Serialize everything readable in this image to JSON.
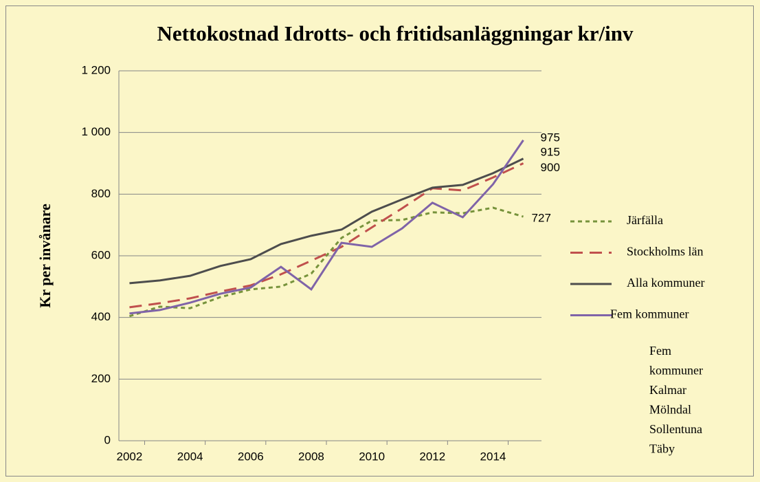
{
  "chart_data": {
    "type": "line",
    "title": "Nettokostnad Idrotts- och fritidsanläggningar kr/inv",
    "y_label": "Kr per invånare",
    "x": [
      2002,
      2003,
      2004,
      2005,
      2006,
      2007,
      2008,
      2009,
      2010,
      2011,
      2012,
      2013,
      2014,
      2015
    ],
    "xlim": [
      2001.65,
      2015.6
    ],
    "xticks": [
      2002,
      2004,
      2006,
      2008,
      2010,
      2012,
      2014
    ],
    "ylim": [
      0,
      1200
    ],
    "yticks": [
      0,
      200,
      400,
      600,
      800,
      {
        "value": 1000,
        "label": "1 000"
      },
      {
        "value": 1200,
        "label": "1 200"
      }
    ],
    "grid": true,
    "legend": "right",
    "series": [
      {
        "name": "Järfälla",
        "color": "#77933c",
        "style": "dotted",
        "values": [
          404,
          435,
          430,
          466,
          491,
          500,
          542,
          658,
          714,
          716,
          741,
          738,
          756,
          727
        ]
      },
      {
        "name": "Stockholms län",
        "color": "#c0504d",
        "style": "dashed",
        "values": [
          433,
          446,
          462,
          484,
          504,
          540,
          584,
          629,
          692,
          754,
          819,
          812,
          854,
          900
        ]
      },
      {
        "name": "Alla kommuner",
        "color": "#4d4d4d",
        "style": "solid",
        "values": [
          511,
          520,
          535,
          567,
          589,
          638,
          665,
          685,
          743,
          783,
          821,
          830,
          868,
          915
        ]
      },
      {
        "name": "Fem kommuner",
        "color": "#7f63a8",
        "style": "solid",
        "values": [
          413,
          424,
          448,
          477,
          497,
          564,
          491,
          642,
          629,
          689,
          772,
          725,
          832,
          975
        ]
      }
    ],
    "annotation": [
      "Fem",
      "kommuner",
      "Kalmar",
      "Mölndal",
      "Sollentuna",
      "Täby"
    ]
  }
}
